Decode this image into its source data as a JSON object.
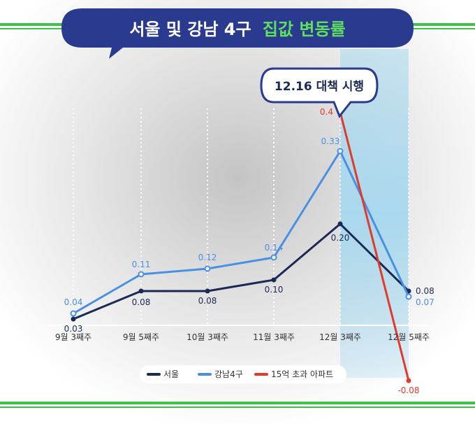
{
  "title": {
    "main": "서울 및 강남 4구",
    "accent": "집값 변동률",
    "main_color": "#ffffff",
    "accent_color": "#5ee05e",
    "bubble_color": "#2a3a8e"
  },
  "annotation": {
    "label": "12.16 대책 시행",
    "target_category": "12월 3째주"
  },
  "colors": {
    "frame_green": "#3fc24a",
    "highlight": "#a9d8ee"
  },
  "chart_data": {
    "type": "line",
    "categories": [
      "9월 3째주",
      "9월 5째주",
      "10월 3째주",
      "11월 3째주",
      "12월 3째주",
      "12월 5째주"
    ],
    "ylim": [
      -0.1,
      0.45
    ],
    "grid": "vertical-dotted",
    "legend_position": "bottom",
    "highlight_range": [
      "12월 3째주",
      "12월 5째주"
    ],
    "series": [
      {
        "name": "서울",
        "color": "#1b2a55",
        "values": [
          0.03,
          0.08,
          0.08,
          0.1,
          0.2,
          0.08
        ],
        "labels": [
          "0.03",
          "0.08",
          "0.08",
          "0.10",
          "0.20",
          "0.08"
        ]
      },
      {
        "name": "강남4구",
        "color": "#4a90e2",
        "values": [
          0.04,
          0.11,
          0.12,
          0.14,
          0.33,
          0.07
        ],
        "labels": [
          "0.04",
          "0.11",
          "0.12",
          "0.14",
          "0.33",
          "0.07"
        ]
      },
      {
        "name": "15억 초과 아파트",
        "color": "#e03a2a",
        "points": [
          {
            "category": "12월 3째주",
            "value": 0.4,
            "label": "0.4"
          },
          {
            "category": "12월 5째주",
            "value": -0.08,
            "label": "-0.08"
          }
        ]
      }
    ]
  }
}
